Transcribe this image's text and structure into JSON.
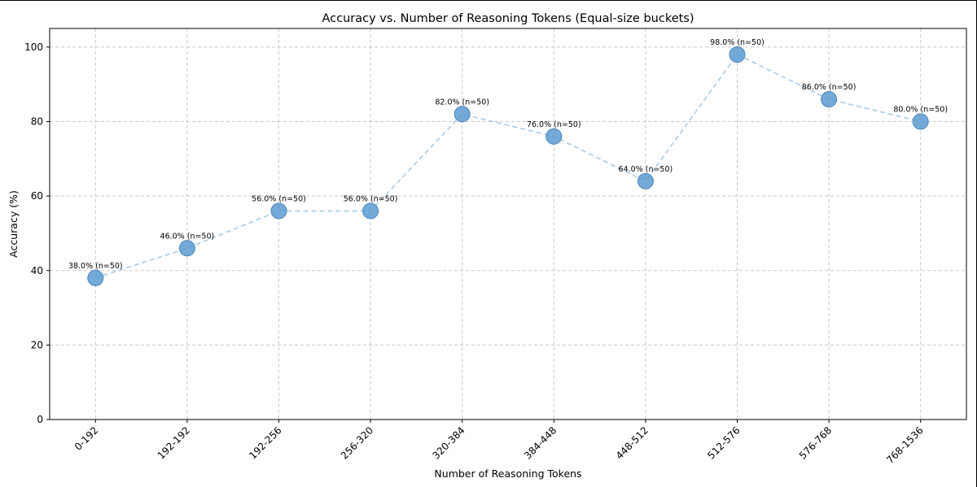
{
  "chart_data": {
    "type": "line",
    "title": "Accuracy vs. Number of Reasoning Tokens (Equal-size buckets)",
    "xlabel": "Number of Reasoning Tokens",
    "ylabel": "Accuracy (%)",
    "ylim": [
      0,
      105
    ],
    "yticks": [
      0,
      20,
      40,
      60,
      80,
      100
    ],
    "categories": [
      "0-192",
      "192-192",
      "192-256",
      "256-320",
      "320-384",
      "384-448",
      "448-512",
      "512-576",
      "576-768",
      "768-1536"
    ],
    "values": [
      38,
      46,
      56,
      56,
      82,
      76,
      64,
      98,
      86,
      80
    ],
    "data_labels": [
      "38.0% (n=50)",
      "46.0% (n=50)",
      "56.0% (n=50)",
      "56.0% (n=50)",
      "82.0% (n=50)",
      "76.0% (n=50)",
      "64.0% (n=50)",
      "98.0% (n=50)",
      "86.0% (n=50)",
      "80.0% (n=50)"
    ],
    "grid": true,
    "line_style": "dashed",
    "colors": {
      "marker": "#5b9bd0",
      "marker_edge": "#4a86bd",
      "line": "#a9cbe6",
      "grid": "#c8c8c8"
    }
  }
}
